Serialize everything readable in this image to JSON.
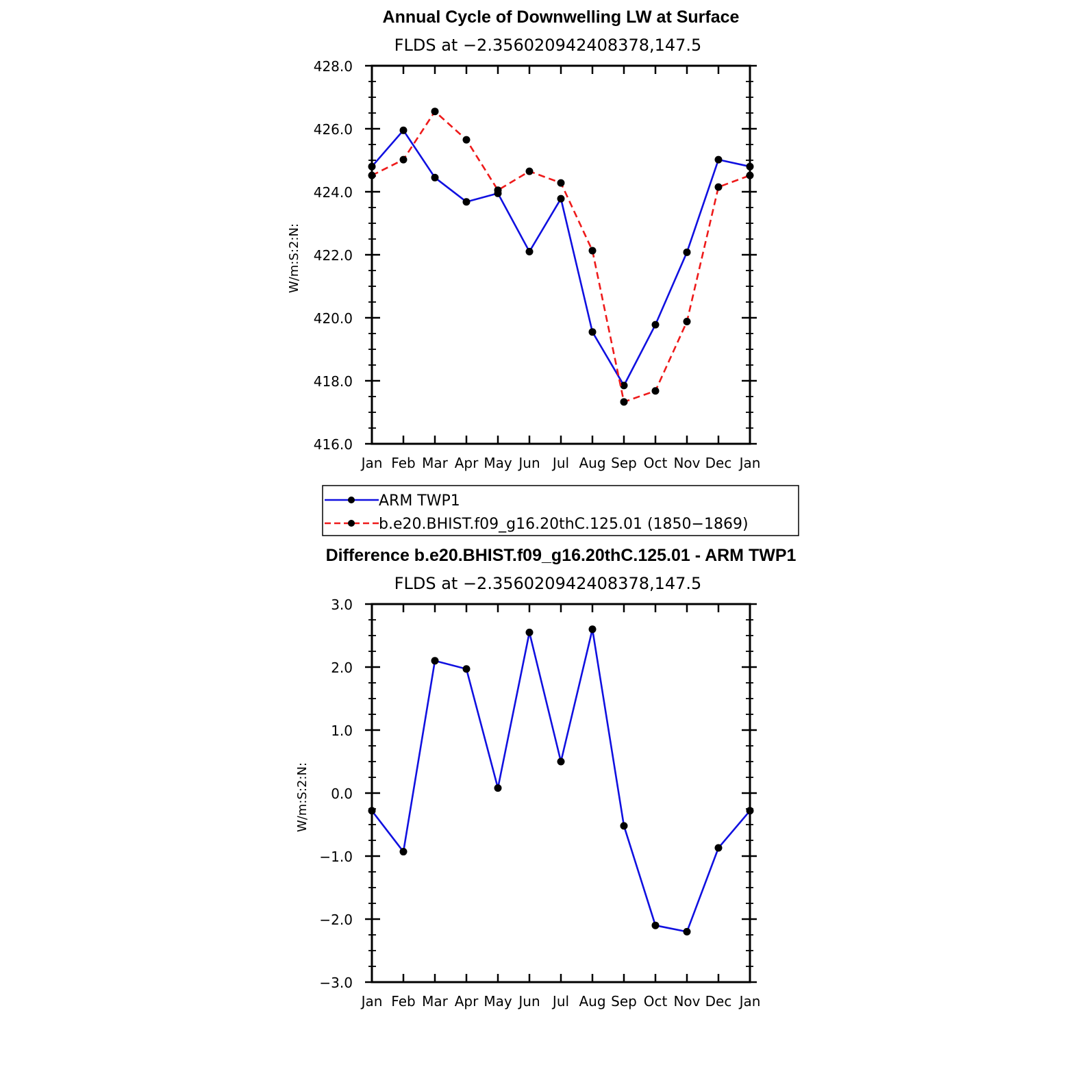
{
  "chart_data": [
    {
      "type": "line",
      "title": "Annual Cycle of Downwelling LW at Surface",
      "subtitle": "FLDS at −2.356020942408378,147.5",
      "ylabel": "W/m:S:2:N:",
      "categories": [
        "Jan",
        "Feb",
        "Mar",
        "Apr",
        "May",
        "Jun",
        "Jul",
        "Aug",
        "Sep",
        "Oct",
        "Nov",
        "Dec",
        "Jan"
      ],
      "ylim": [
        416.0,
        428.0
      ],
      "yticks": [
        "428.0",
        "426.0",
        "424.0",
        "422.0",
        "420.0",
        "418.0",
        "416.0"
      ],
      "series": [
        {
          "name": "ARM  TWP1",
          "color": "#1010e0",
          "dashed": false,
          "values": [
            424.8,
            425.95,
            424.45,
            423.68,
            423.95,
            422.1,
            423.78,
            419.55,
            417.85,
            419.78,
            422.08,
            425.02,
            424.8
          ]
        },
        {
          "name": "b.e20.BHIST.f09_g16.20thC.125.01  (1850−1869)",
          "color": "#ee1a1a",
          "dashed": true,
          "values": [
            424.52,
            425.02,
            426.55,
            425.65,
            424.05,
            424.65,
            424.28,
            422.13,
            417.33,
            417.68,
            419.88,
            424.15,
            424.52
          ]
        }
      ]
    },
    {
      "type": "line",
      "title": "Difference b.e20.BHIST.f09_g16.20thC.125.01 - ARM TWP1",
      "subtitle": "FLDS at −2.356020942408378,147.5",
      "ylabel": "W/m:S:2:N:",
      "categories": [
        "Jan",
        "Feb",
        "Mar",
        "Apr",
        "May",
        "Jun",
        "Jul",
        "Aug",
        "Sep",
        "Oct",
        "Nov",
        "Dec",
        "Jan"
      ],
      "ylim": [
        -3.0,
        3.0
      ],
      "yticks": [
        "3.0",
        "2.0",
        "1.0",
        "0.0",
        "−1.0",
        "−2.0",
        "−3.0"
      ],
      "series": [
        {
          "color": "#1010e0",
          "dashed": false,
          "values": [
            -0.28,
            -0.93,
            2.1,
            1.97,
            0.08,
            2.55,
            0.5,
            2.6,
            -0.52,
            -2.1,
            -2.2,
            -0.87,
            -0.28
          ]
        }
      ]
    }
  ]
}
